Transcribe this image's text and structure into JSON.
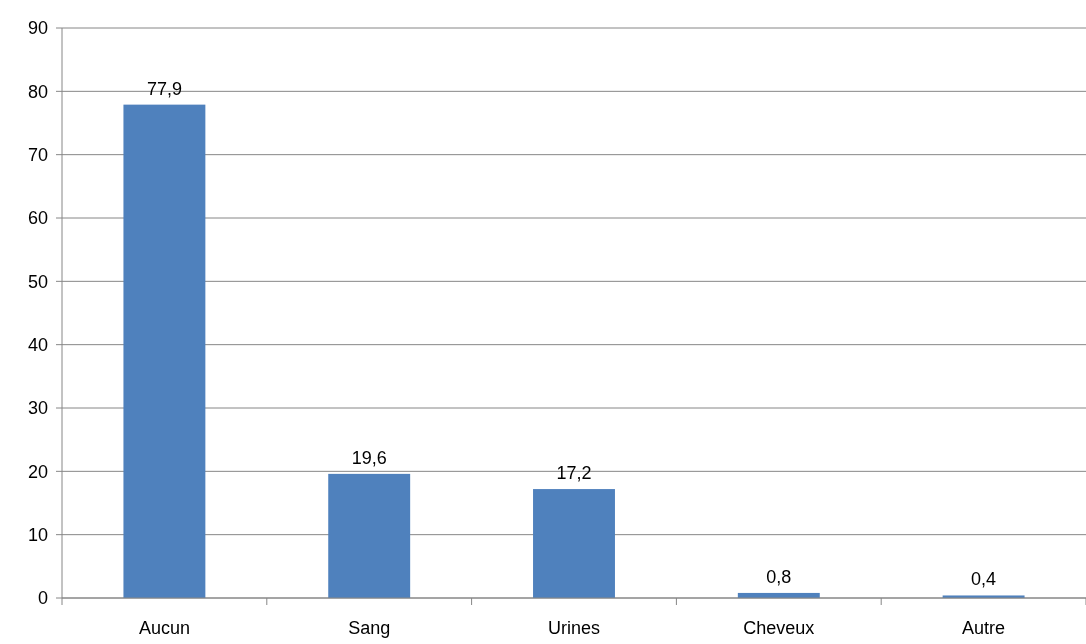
{
  "chart_data": {
    "type": "bar",
    "categories": [
      "Aucun",
      "Sang",
      "Urines",
      "Cheveux",
      "Autre"
    ],
    "values": [
      77.9,
      19.6,
      17.2,
      0.8,
      0.4
    ],
    "value_labels": [
      "77,9",
      "19,6",
      "17,2",
      "0,8",
      "0,4"
    ],
    "color": "#4f81bd",
    "ylim": [
      0,
      90
    ],
    "yticks": [
      0,
      10,
      20,
      30,
      40,
      50,
      60,
      70,
      80,
      90
    ],
    "grid": "y"
  }
}
